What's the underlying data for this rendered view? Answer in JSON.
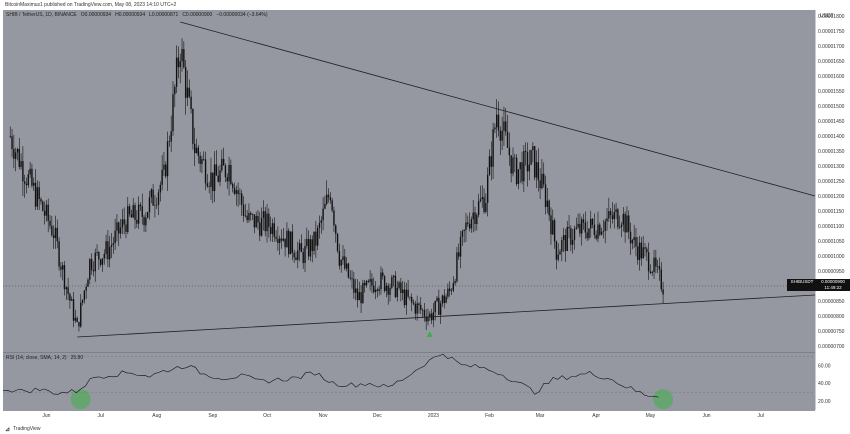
{
  "header": {
    "publish_line": "BitcoinMaximus1 published on TradingView.com, May 08, 2023 14:10 UTC+2"
  },
  "legend": {
    "symbol": "SHIB / TetherUS, 1D, BINANCE",
    "open": "O0.00000934",
    "high": "H0.00000934",
    "low": "L0.00000871",
    "close": "C0.00000900",
    "change": "−0.00000034 (−3.64%)"
  },
  "rsi_legend": {
    "label": "RSI (14, close, SMA, 14, 2)",
    "value": "25.80"
  },
  "price_axis": {
    "currency": "USDT"
  },
  "tags": {
    "symbol_tag": "SHIBUSDT",
    "last_price": "0.00000900",
    "countdown": "11:49:22"
  },
  "footer": {
    "brand": "TradingView"
  },
  "colors": {
    "background": "#9598a1",
    "candle": "#111111",
    "trendline": "#1f1f1f",
    "highlight_green": "#3fae49",
    "rsi_line": "#111111"
  },
  "chart_data": [
    {
      "type": "candlestick",
      "title": "SHIB / TetherUS, 1D, BINANCE",
      "x_ticks": [
        "Jun",
        "Jul",
        "Aug",
        "Sep",
        "Oct",
        "Nov",
        "Dec",
        "2023",
        "Feb",
        "Mar",
        "Apr",
        "May",
        "Jun",
        "Jul"
      ],
      "y_ticks": [
        "0.00001800",
        "0.00001750",
        "0.00001700",
        "0.00001650",
        "0.00001600",
        "0.00001550",
        "0.00001500",
        "0.00001450",
        "0.00001400",
        "0.00001350",
        "0.00001300",
        "0.00001250",
        "0.00001200",
        "0.00001150",
        "0.00001100",
        "0.00001050",
        "0.00001000",
        "0.00000950",
        "0.00000900",
        "0.00000850",
        "0.00000800",
        "0.00000750",
        "0.00000700"
      ],
      "ylim": [
        6.8e-06,
        1.82e-05
      ],
      "close_path": [
        {
          "date": "2022-05-12",
          "close": 1.4e-05
        },
        {
          "date": "2022-05-20",
          "close": 1.28e-05
        },
        {
          "date": "2022-05-28",
          "close": 1.18e-05
        },
        {
          "date": "2022-06-05",
          "close": 1.08e-05
        },
        {
          "date": "2022-06-12",
          "close": 9e-06
        },
        {
          "date": "2022-06-18",
          "close": 7.6e-06
        },
        {
          "date": "2022-06-25",
          "close": 9.8e-06
        },
        {
          "date": "2022-07-05",
          "close": 1.02e-05
        },
        {
          "date": "2022-07-15",
          "close": 1.12e-05
        },
        {
          "date": "2022-07-25",
          "close": 1.14e-05
        },
        {
          "date": "2022-08-05",
          "close": 1.26e-05
        },
        {
          "date": "2022-08-14",
          "close": 1.7e-05
        },
        {
          "date": "2022-08-22",
          "close": 1.36e-05
        },
        {
          "date": "2022-09-01",
          "close": 1.25e-05
        },
        {
          "date": "2022-09-10",
          "close": 1.3e-05
        },
        {
          "date": "2022-09-20",
          "close": 1.12e-05
        },
        {
          "date": "2022-10-05",
          "close": 1.1e-05
        },
        {
          "date": "2022-10-20",
          "close": 1e-05
        },
        {
          "date": "2022-10-28",
          "close": 1.05e-05
        },
        {
          "date": "2022-11-05",
          "close": 1.22e-05
        },
        {
          "date": "2022-11-10",
          "close": 1e-05
        },
        {
          "date": "2022-11-20",
          "close": 8.6e-06
        },
        {
          "date": "2022-12-01",
          "close": 9.2e-06
        },
        {
          "date": "2022-12-10",
          "close": 9e-06
        },
        {
          "date": "2022-12-20",
          "close": 8.4e-06
        },
        {
          "date": "2022-12-30",
          "close": 8e-06
        },
        {
          "date": "2023-01-10",
          "close": 8.8e-06
        },
        {
          "date": "2023-01-20",
          "close": 1.12e-05
        },
        {
          "date": "2023-01-30",
          "close": 1.2e-05
        },
        {
          "date": "2023-02-05",
          "close": 1.48e-05
        },
        {
          "date": "2023-02-15",
          "close": 1.28e-05
        },
        {
          "date": "2023-02-25",
          "close": 1.32e-05
        },
        {
          "date": "2023-03-05",
          "close": 1.18e-05
        },
        {
          "date": "2023-03-10",
          "close": 1.02e-05
        },
        {
          "date": "2023-03-20",
          "close": 1.08e-05
        },
        {
          "date": "2023-04-01",
          "close": 1.1e-05
        },
        {
          "date": "2023-04-15",
          "close": 1.14e-05
        },
        {
          "date": "2023-04-22",
          "close": 1.04e-05
        },
        {
          "date": "2023-05-01",
          "close": 9.8e-06
        },
        {
          "date": "2023-05-08",
          "close": 9e-06
        }
      ],
      "trendlines": [
        {
          "from": {
            "date": "2022-08-14",
            "value": 1.78e-05
          },
          "to": {
            "date": "2023-07-31",
            "value": 1.2e-05
          }
        },
        {
          "from": {
            "date": "2022-06-18",
            "value": 7.3e-06
          },
          "to": {
            "date": "2023-07-31",
            "value": 8.7e-06
          }
        }
      ],
      "markers": [
        {
          "date": "2022-12-30",
          "shape": "triangle-up",
          "color": "#3fae49"
        }
      ]
    },
    {
      "type": "line",
      "title": "RSI (14, close, SMA, 14, 2)",
      "y_ticks": [
        "60.00",
        "40.00",
        "20.00"
      ],
      "ylim": [
        10,
        75
      ],
      "values_approx": [
        34,
        31,
        33,
        29,
        31,
        47,
        50,
        52,
        48,
        55,
        60,
        50,
        46,
        48,
        42,
        44,
        46,
        52,
        40,
        38,
        40,
        35,
        47,
        62,
        74,
        60,
        58,
        52,
        42,
        30,
        44,
        48,
        51,
        46,
        36,
        27,
        26
      ],
      "highlights": [
        {
          "date": "2022-06-20",
          "color": "#3fae49"
        },
        {
          "date": "2023-05-08",
          "color": "#3fae49"
        }
      ]
    }
  ]
}
